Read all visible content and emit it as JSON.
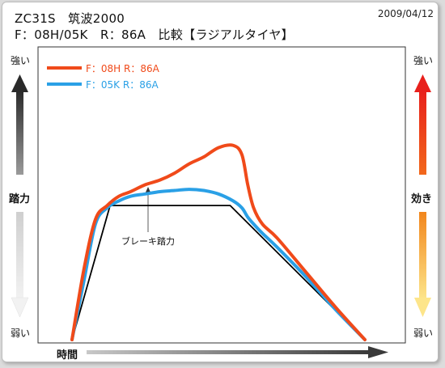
{
  "header": {
    "title_line1": "ZC31S　筑波2000",
    "title_line2": "F：08H/05K　R：86A　比較【ラジアルタイヤ】",
    "date": "2009/04/12"
  },
  "left_axis": {
    "top": "強い",
    "middle": "踏力",
    "bottom": "弱い"
  },
  "right_axis": {
    "top": "強い",
    "middle": "効き",
    "bottom": "弱い"
  },
  "x_axis": {
    "label": "時間"
  },
  "annotation": "ブレーキ踏力",
  "colors": {
    "series_red": "#f04a1a",
    "series_blue": "#2aa0e6",
    "reference": "#000000"
  },
  "chart_data": {
    "type": "line",
    "title": "ZC31S　筑波2000",
    "subtitle": "F：08H/05K　R：86A　比較【ラジアルタイヤ】",
    "xlabel": "時間",
    "ylabel": "踏力",
    "y2label": "効き",
    "xlim": [
      0,
      100
    ],
    "ylim": [
      0,
      100
    ],
    "grid": false,
    "legend": "top-left",
    "series": [
      {
        "name": "F：08H  R：86A",
        "color": "#f04a1a",
        "x": [
          0,
          4,
          8,
          12,
          16,
          20,
          25,
          30,
          35,
          40,
          45,
          50,
          55,
          58,
          60,
          62,
          65,
          70,
          80,
          90,
          100
        ],
        "y": [
          0,
          30,
          52,
          58,
          62,
          64,
          67,
          69,
          72,
          76,
          79,
          83,
          84,
          80,
          67,
          57,
          50,
          44,
          29,
          14,
          0
        ]
      },
      {
        "name": "F：05K  R：86A",
        "color": "#2aa0e6",
        "x": [
          0,
          4,
          8,
          12,
          16,
          20,
          25,
          30,
          35,
          40,
          45,
          50,
          55,
          58,
          60,
          62,
          65,
          70,
          80,
          90,
          100
        ],
        "y": [
          0,
          25,
          50,
          57,
          60,
          62,
          63,
          64,
          64.5,
          65,
          64.5,
          63,
          60,
          57,
          53,
          50,
          46,
          40,
          27,
          13,
          0
        ]
      },
      {
        "name": "ブレーキ踏力",
        "color": "#000000",
        "x": [
          0,
          13,
          54,
          100
        ],
        "y": [
          0,
          58,
          58,
          0
        ]
      }
    ]
  }
}
